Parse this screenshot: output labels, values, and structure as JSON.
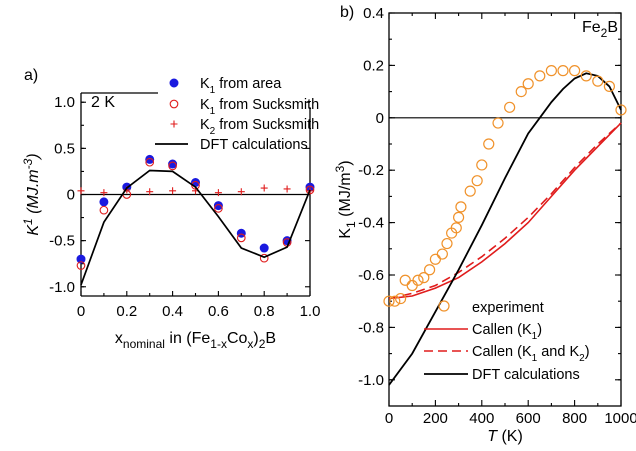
{
  "chart_data": [
    {
      "panel_label": "a)",
      "type": "scatter",
      "annotation": "2 K",
      "xlabel_parts": [
        "x",
        "nominal",
        " in (Fe",
        "1-x",
        "Co",
        "x",
        ")",
        "2",
        "B"
      ],
      "ylabel_parts": [
        "K",
        "1",
        " (MJ.m",
        "-3",
        ")"
      ],
      "xlim": [
        0,
        1.0
      ],
      "ylim": [
        -1.1,
        1.1
      ],
      "xticks": [
        "0",
        "0.2",
        "0.4",
        "0.6",
        "0.8",
        "1.0"
      ],
      "xtick_values": [
        0,
        0.2,
        0.4,
        0.6,
        0.8,
        1.0
      ],
      "yticks": [
        "1.0",
        "0.5",
        "0",
        "-0.5",
        "-1.0"
      ],
      "ytick_values": [
        1.0,
        0.5,
        0,
        -0.5,
        -1.0
      ],
      "zero_line": true,
      "legend_position": "top-right",
      "series": [
        {
          "name_parts": [
            "K",
            "1",
            " from area"
          ],
          "marker": "filled-circle",
          "color": "#1a1adf",
          "x": [
            0,
            0.1,
            0.2,
            0.3,
            0.4,
            0.5,
            0.6,
            0.7,
            0.8,
            0.9,
            1.0
          ],
          "y": [
            -0.7,
            -0.08,
            0.08,
            0.38,
            0.33,
            0.13,
            -0.12,
            -0.42,
            -0.58,
            -0.5,
            0.08
          ]
        },
        {
          "name_parts": [
            "K",
            "1",
            " from Sucksmith"
          ],
          "marker": "open-circle",
          "color": "#e01c1c",
          "x": [
            0,
            0.1,
            0.2,
            0.3,
            0.4,
            0.5,
            0.6,
            0.7,
            0.8,
            0.9,
            1.0
          ],
          "y": [
            -0.77,
            -0.17,
            0.0,
            0.35,
            0.31,
            0.1,
            -0.15,
            -0.47,
            -0.69,
            -0.52,
            0.05
          ]
        },
        {
          "name_parts": [
            "K",
            "2",
            " from Sucksmith"
          ],
          "marker": "plus",
          "color": "#e01c1c",
          "x": [
            0,
            0.1,
            0.2,
            0.3,
            0.4,
            0.5,
            0.6,
            0.7,
            0.8,
            0.9,
            1.0
          ],
          "y": [
            0.04,
            0.02,
            0.05,
            0.03,
            0.04,
            0.04,
            0.02,
            0.03,
            0.07,
            0.06,
            0.04
          ]
        },
        {
          "name_parts": [
            "DFT calculations"
          ],
          "marker": "line",
          "color": "#000000",
          "x": [
            0,
            0.1,
            0.2,
            0.3,
            0.4,
            0.5,
            0.6,
            0.7,
            0.8,
            0.9,
            1.0
          ],
          "y": [
            -0.98,
            -0.3,
            0.07,
            0.26,
            0.25,
            0.08,
            -0.24,
            -0.58,
            -0.68,
            -0.57,
            0.05
          ]
        }
      ]
    },
    {
      "panel_label": "b)",
      "type": "line",
      "annotation_parts": [
        "Fe",
        "2",
        "B"
      ],
      "xlabel": "T (K)",
      "ylabel_parts": [
        "K",
        "1",
        " (MJ/m",
        "3",
        ")"
      ],
      "xlim": [
        0,
        1000
      ],
      "ylim": [
        -1.1,
        0.4
      ],
      "xticks": [
        "0",
        "200",
        "400",
        "600",
        "800",
        "1000"
      ],
      "xtick_values": [
        0,
        200,
        400,
        600,
        800,
        1000
      ],
      "yticks": [
        "0.4",
        "0.2",
        "0",
        "-0.2",
        "-0.4",
        "-0.6",
        "-0.8",
        "-1.0"
      ],
      "ytick_values": [
        0.4,
        0.2,
        0,
        -0.2,
        -0.4,
        -0.6,
        -0.8,
        -1.0
      ],
      "zero_line": true,
      "legend_position": "bottom-right",
      "series": [
        {
          "name": "experiment",
          "marker": "open-circle",
          "color": "#f0922b",
          "x": [
            0,
            25,
            50,
            70,
            100,
            125,
            150,
            175,
            200,
            230,
            250,
            270,
            290,
            300,
            310,
            350,
            380,
            400,
            430,
            470,
            520,
            570,
            600,
            650,
            700,
            750,
            800,
            850,
            900,
            950,
            1000
          ],
          "y": [
            -0.7,
            -0.7,
            -0.69,
            -0.62,
            -0.64,
            -0.62,
            -0.61,
            -0.58,
            -0.54,
            -0.52,
            -0.48,
            -0.44,
            -0.42,
            -0.38,
            -0.34,
            -0.28,
            -0.24,
            -0.18,
            -0.1,
            -0.02,
            0.04,
            0.1,
            0.13,
            0.16,
            0.18,
            0.18,
            0.18,
            0.16,
            0.14,
            0.12,
            0.03
          ]
        },
        {
          "name_parts": [
            "Callen (K",
            "1",
            ")"
          ],
          "marker": "line",
          "color": "#e01c1c",
          "x": [
            0,
            100,
            200,
            300,
            400,
            500,
            600,
            700,
            800,
            900,
            1000
          ],
          "y": [
            -0.69,
            -0.68,
            -0.65,
            -0.61,
            -0.55,
            -0.48,
            -0.4,
            -0.3,
            -0.2,
            -0.11,
            -0.02
          ]
        },
        {
          "name_parts": [
            "Callen (K",
            "1",
            " and K",
            "2",
            ")"
          ],
          "marker": "dashed-line",
          "color": "#e01c1c",
          "x": [
            0,
            100,
            200,
            300,
            400,
            500,
            600,
            700,
            800,
            900,
            1000
          ],
          "y": [
            -0.69,
            -0.67,
            -0.64,
            -0.59,
            -0.53,
            -0.46,
            -0.38,
            -0.29,
            -0.19,
            -0.1,
            -0.02
          ]
        },
        {
          "name": "DFT calculations",
          "marker": "line",
          "color": "#000000",
          "x": [
            0,
            100,
            200,
            300,
            400,
            500,
            600,
            650,
            700,
            750,
            800,
            850,
            900,
            950,
            1000
          ],
          "y": [
            -1.02,
            -0.9,
            -0.74,
            -0.58,
            -0.41,
            -0.23,
            -0.06,
            0.0,
            0.06,
            0.11,
            0.15,
            0.17,
            0.16,
            0.12,
            0.03
          ]
        }
      ]
    }
  ]
}
